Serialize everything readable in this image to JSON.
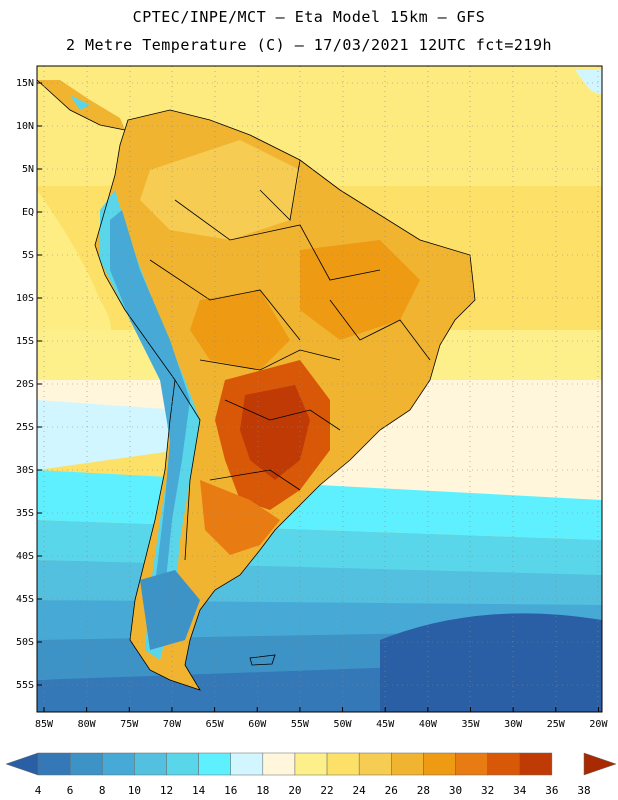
{
  "header": {
    "line1": "CPTEC/INPE/MCT –  Eta Model 15km – GFS",
    "line2": "2 Metre Temperature (C) – 17/03/2021 12UTC fct=219h"
  },
  "map": {
    "lat_labels": [
      "15N",
      "10N",
      "5N",
      "EQ",
      "5S",
      "10S",
      "15S",
      "20S",
      "25S",
      "30S",
      "35S",
      "40S",
      "45S",
      "50S",
      "55S"
    ],
    "lon_labels": [
      "85W",
      "80W",
      "75W",
      "70W",
      "65W",
      "60W",
      "55W",
      "50W",
      "45W",
      "40W",
      "35W",
      "30W",
      "25W",
      "20W"
    ]
  },
  "legend": {
    "colors": [
      "#2a5fa6",
      "#3478b8",
      "#3d92c6",
      "#47aad6",
      "#52c0de",
      "#5ad6ea",
      "#5ff0ff",
      "#d2f6ff",
      "#fff6dc",
      "#fdf08a",
      "#fde068",
      "#f6cc52",
      "#f0b430",
      "#ee9a12",
      "#e87c12",
      "#d85808",
      "#bf3a04",
      "#a82a02"
    ],
    "labels": [
      "4",
      "6",
      "8",
      "10",
      "12",
      "14",
      "16",
      "18",
      "20",
      "22",
      "24",
      "26",
      "28",
      "30",
      "32",
      "34",
      "36",
      "38"
    ]
  }
}
